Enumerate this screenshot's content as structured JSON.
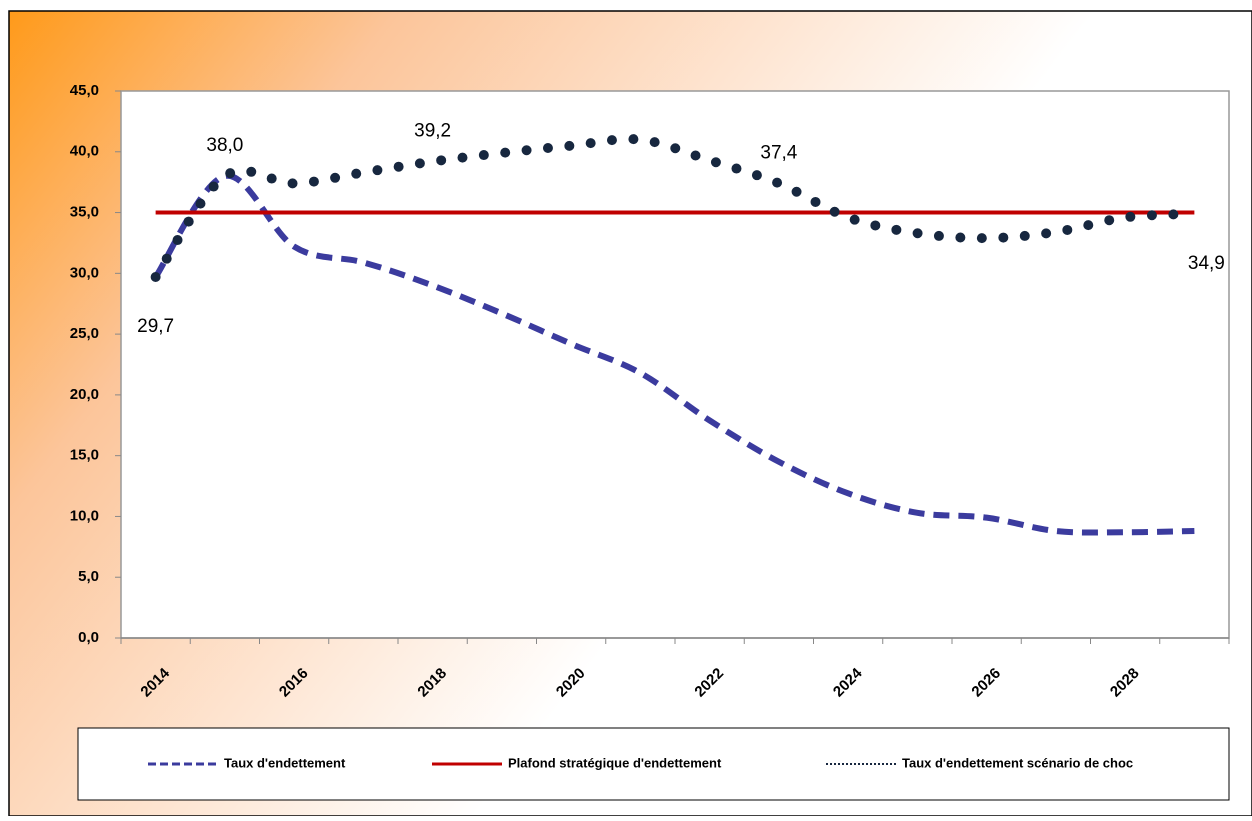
{
  "chart_data": {
    "type": "line",
    "categories": [
      "2014",
      null,
      "2016",
      null,
      "2018",
      null,
      "2020",
      null,
      "2022",
      null,
      "2024",
      null,
      "2026",
      null,
      "2028",
      null
    ],
    "series": [
      {
        "name": "Taux d'endettement",
        "color": "#3b3b9e",
        "style": "dashed",
        "values": [
          29.7,
          38.0,
          32.2,
          30.9,
          29.0,
          26.7,
          24.2,
          21.8,
          17.9,
          14.5,
          11.9,
          10.3,
          9.9,
          8.8,
          8.7,
          8.8
        ]
      },
      {
        "name": "Plafond stratégique  d'endettement",
        "color": "#c00000",
        "style": "solid",
        "values": [
          35,
          35,
          35,
          35,
          35,
          35,
          35,
          35,
          35,
          35,
          35,
          35,
          35,
          35,
          35,
          35
        ]
      },
      {
        "name": "Taux d'endettement  scénario  de choc",
        "color": "#17273f",
        "style": "dotted",
        "values": [
          29.7,
          38.0,
          37.4,
          38.3,
          39.2,
          39.9,
          40.5,
          41.0,
          39.3,
          37.4,
          34.6,
          33.3,
          32.9,
          33.4,
          34.6,
          34.9
        ],
        "value_labels": [
          "29,7",
          "38,0",
          null,
          null,
          "39,2",
          null,
          null,
          null,
          null,
          "37,4",
          null,
          null,
          null,
          null,
          null,
          "34,9"
        ]
      }
    ],
    "ylim": [
      0,
      45
    ],
    "yticks": [
      {
        "value": 0,
        "label": "0,0"
      },
      {
        "value": 5,
        "label": "5,0"
      },
      {
        "value": 10,
        "label": "10,0"
      },
      {
        "value": 15,
        "label": "15,0"
      },
      {
        "value": 20,
        "label": "20,0"
      },
      {
        "value": 25,
        "label": "25,0"
      },
      {
        "value": 30,
        "label": "30,0"
      },
      {
        "value": 35,
        "label": "35,0"
      },
      {
        "value": 40,
        "label": "40,0"
      },
      {
        "value": 45,
        "label": "45,0"
      }
    ],
    "legend": "bottom"
  }
}
